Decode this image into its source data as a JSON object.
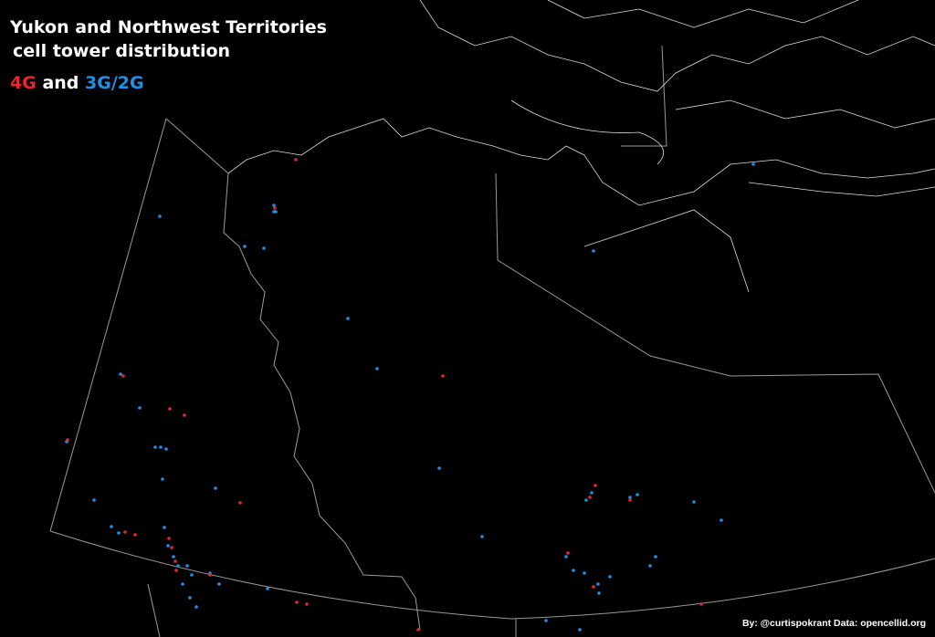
{
  "title": {
    "line1": "Yukon and Northwest Territories",
    "line2": "cell tower distribution"
  },
  "legend": {
    "four_g": "4G",
    "and": " and ",
    "three_g": "3G/2G"
  },
  "credit": "By: @curtispokrant Data: opencellid.org",
  "colors": {
    "four_g": "#e8262b",
    "three_g_2g": "#1e90e8",
    "boundary": "#9a9a9a",
    "coastline": "#dddddd",
    "background": "#000000"
  }
}
